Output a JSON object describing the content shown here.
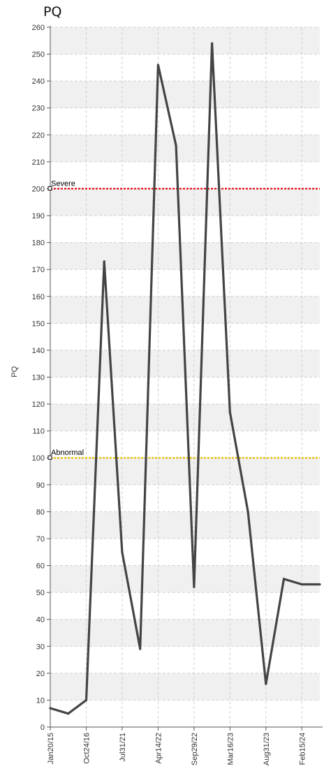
{
  "page": {
    "title": "PQ"
  },
  "chart_data": {
    "type": "line",
    "title": "PQ",
    "ylabel": "PQ",
    "xlabel": "",
    "ylim": [
      0,
      260
    ],
    "ytick_step": 10,
    "grid": true,
    "x_tick_labels": [
      "Jan20/15",
      "Oct24/16",
      "Jul31/21",
      "Apr14/22",
      "Sep29/22",
      "Mar16/23",
      "Aug31/23",
      "Feb15/24"
    ],
    "series": [
      {
        "values": [
          7,
          5,
          10,
          173,
          65,
          29,
          246,
          216,
          52,
          254,
          117,
          80,
          16,
          55,
          53,
          53
        ]
      }
    ],
    "thresholds": [
      {
        "label": "Severe",
        "value": 200,
        "color": "#e8000b"
      },
      {
        "label": "Abnormal",
        "value": 100,
        "color": "#e8c000"
      }
    ],
    "colors": {
      "line": "#444444",
      "band": "#f0f0f0",
      "grid": "#d0d0d0"
    }
  }
}
